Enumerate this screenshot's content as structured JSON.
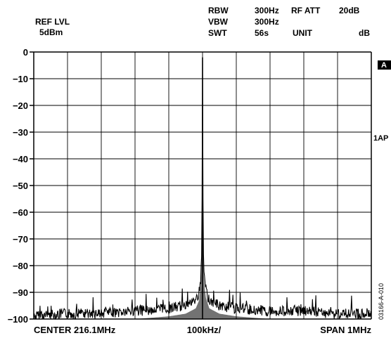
{
  "header": {
    "ref_lvl_label": "REF LVL",
    "ref_lvl_value": "5dBm",
    "rbw_label": "RBW",
    "rbw_value": "300Hz",
    "vbw_label": "VBW",
    "vbw_value": "300Hz",
    "swt_label": "SWT",
    "swt_value": "56s",
    "rf_att_label": "RF ATT",
    "rf_att_value": "20dB",
    "unit_label": "UNIT",
    "unit_value": "dB"
  },
  "side": {
    "marker_a": "A",
    "trace_mode": "1AP"
  },
  "figure_id": "03166-A-010",
  "chart_data": {
    "type": "line",
    "title": "",
    "xlabel": "",
    "ylabel": "",
    "x_center_label": "CENTER 216.1MHz",
    "x_div_label": "100kHz/",
    "x_span_label": "SPAN 1MHz",
    "xlim": [
      215.6,
      216.6
    ],
    "ylim": [
      -100,
      0
    ],
    "yticks": [
      "0",
      "−10",
      "−20",
      "−30",
      "−40",
      "−50",
      "−60",
      "−70",
      "−80",
      "−90",
      "−100"
    ],
    "grid": true,
    "x_divisions": 10,
    "series": [
      {
        "x": [
          215.6,
          215.7,
          215.8,
          215.9,
          216.0,
          216.05,
          216.08,
          216.09,
          216.095,
          216.098,
          216.1,
          216.102,
          216.105,
          216.11,
          216.12,
          216.15,
          216.2,
          216.3,
          216.4,
          216.5,
          216.6
        ],
        "values": [
          -97,
          -96,
          -96,
          -95,
          -94,
          -93,
          -91,
          -88,
          -82,
          -73,
          -2,
          -72,
          -82,
          -87,
          -91,
          -93,
          -94,
          -95,
          -95,
          -96,
          -96
        ]
      }
    ]
  }
}
